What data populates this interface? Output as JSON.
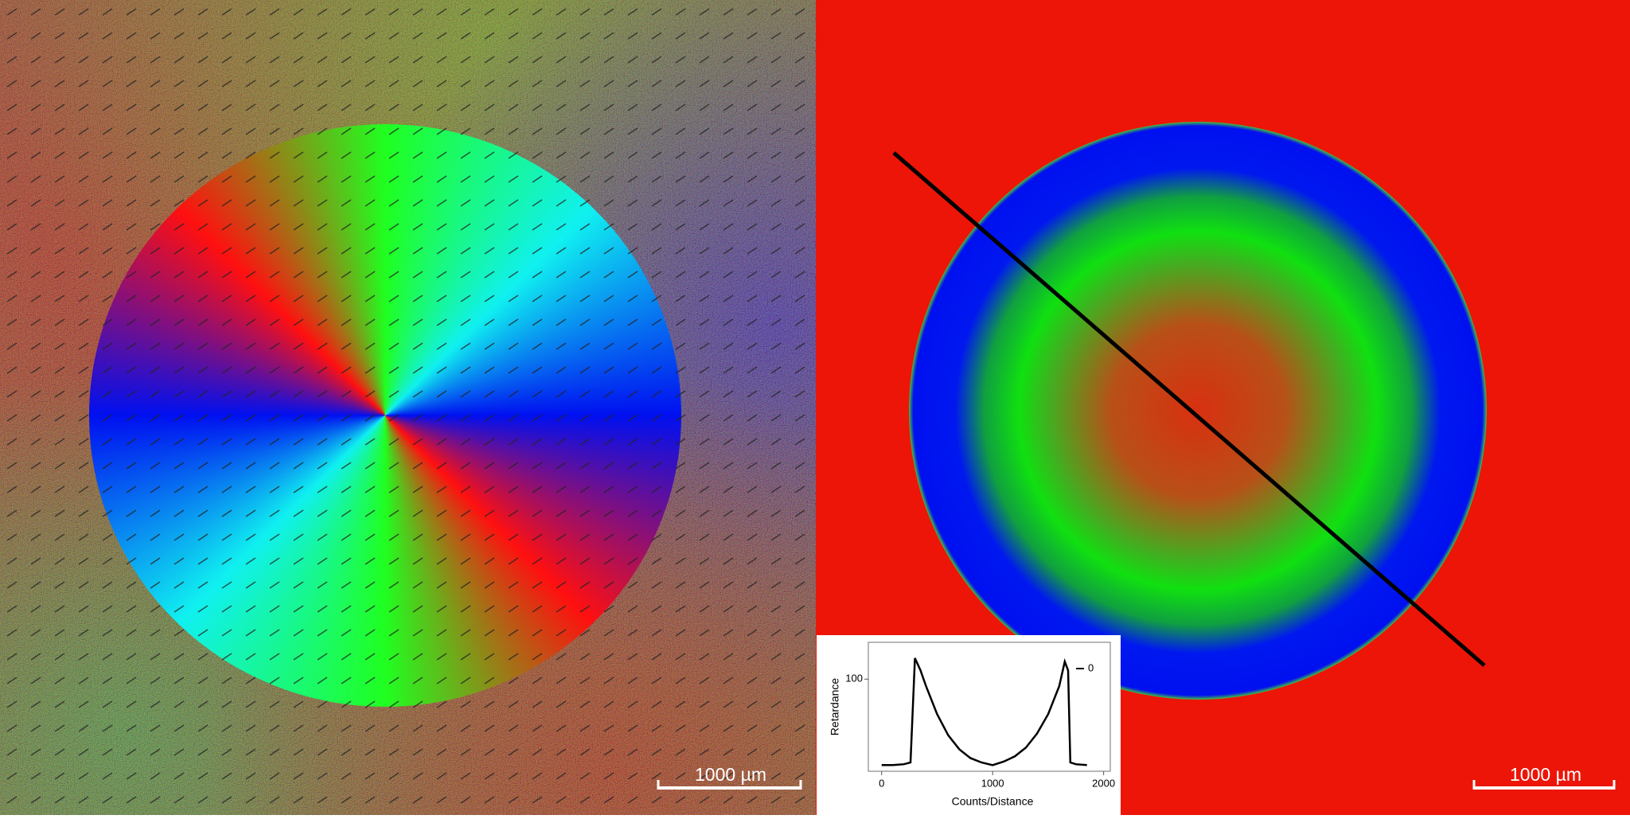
{
  "left_panel": {
    "scale_bar_label": "1000 µm"
  },
  "right_panel": {
    "scale_bar_label": "1000 µm"
  },
  "inset_chart": {
    "type": "line",
    "xlabel": "Counts/Distance",
    "ylabel": "Retardance",
    "x": [
      0,
      100,
      200,
      260,
      300,
      350,
      400,
      500,
      600,
      700,
      800,
      900,
      1000,
      1100,
      1200,
      1300,
      1400,
      1500,
      1600,
      1650,
      1680,
      1700,
      1750,
      1850
    ],
    "series": [
      {
        "name": "0",
        "color": "#000000",
        "values": [
          2,
          2,
          3,
          5,
          124,
          110,
          92,
          60,
          36,
          20,
          10,
          5,
          2,
          6,
          12,
          22,
          38,
          60,
          92,
          120,
          110,
          5,
          3,
          2
        ]
      }
    ],
    "xlim": [
      -120,
      2060
    ],
    "ylim": [
      -5,
      142
    ],
    "xticks": [
      0,
      1000,
      2000
    ],
    "yticks": [
      100
    ]
  }
}
